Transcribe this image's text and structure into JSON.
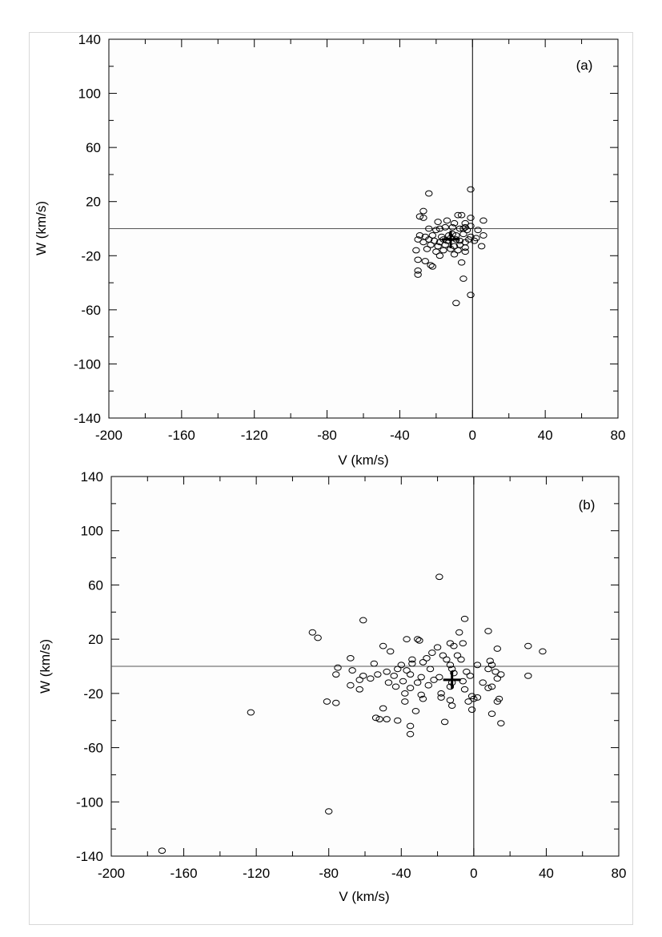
{
  "chart_data": [
    {
      "type": "scatter",
      "panel_label": "(a)",
      "xlabel": "V (km/s)",
      "ylabel": "W (km/s)",
      "xlim": [
        -200,
        80
      ],
      "ylim": [
        -140,
        140
      ],
      "xticks": [
        -200,
        -160,
        -120,
        -80,
        -40,
        0,
        40,
        80
      ],
      "yticks": [
        140,
        100,
        60,
        20,
        -20,
        -60,
        -100,
        -140
      ],
      "xtick_labels": [
        "-200",
        "-160",
        "-120",
        "-80",
        "-40",
        "0",
        "40",
        "80"
      ],
      "ytick_labels": [
        "140",
        "100",
        "60",
        "20",
        "-20",
        "-60",
        "-100",
        "-140"
      ],
      "grid": false,
      "reference_lines": {
        "x": 0,
        "y": 0
      },
      "mean_marker": {
        "x": -12,
        "y": -8
      },
      "points": [
        [
          -24,
          26
        ],
        [
          -1,
          29
        ],
        [
          -27,
          13
        ],
        [
          -29,
          9
        ],
        [
          -27,
          8
        ],
        [
          -8,
          10
        ],
        [
          -6,
          10
        ],
        [
          -1,
          8
        ],
        [
          6,
          6
        ],
        [
          -19,
          5
        ],
        [
          -14,
          6
        ],
        [
          -10,
          4
        ],
        [
          -4,
          4
        ],
        [
          -4,
          1
        ],
        [
          -1,
          2
        ],
        [
          -24,
          0
        ],
        [
          -20,
          -1
        ],
        [
          -18,
          0
        ],
        [
          -15,
          1
        ],
        [
          -11,
          1
        ],
        [
          -7,
          0
        ],
        [
          -3,
          -1
        ],
        [
          3,
          -1
        ],
        [
          -5,
          0
        ],
        [
          -29,
          -5
        ],
        [
          -26,
          -6
        ],
        [
          -22,
          -5
        ],
        [
          -17,
          -6
        ],
        [
          -13,
          -5
        ],
        [
          -11,
          -4
        ],
        [
          -9,
          -5
        ],
        [
          -5,
          -4
        ],
        [
          -1,
          -6
        ],
        [
          2,
          -7
        ],
        [
          6,
          -5
        ],
        [
          -30,
          -8
        ],
        [
          -27,
          -10
        ],
        [
          -24,
          -8
        ],
        [
          -21,
          -9
        ],
        [
          -18,
          -10
        ],
        [
          -16,
          -8
        ],
        [
          -14,
          -9
        ],
        [
          -12,
          -7
        ],
        [
          -9,
          -8
        ],
        [
          -7,
          -9
        ],
        [
          -4,
          -10
        ],
        [
          -2,
          -8
        ],
        [
          1,
          -9
        ],
        [
          -23,
          -12
        ],
        [
          -19,
          -13
        ],
        [
          -15,
          -12
        ],
        [
          -10,
          -13
        ],
        [
          -7,
          -12
        ],
        [
          -4,
          -14
        ],
        [
          5,
          -13
        ],
        [
          -31,
          -16
        ],
        [
          -25,
          -15
        ],
        [
          -20,
          -17
        ],
        [
          -16,
          -16
        ],
        [
          -12,
          -15
        ],
        [
          -8,
          -16
        ],
        [
          -4,
          -17
        ],
        [
          -18,
          -20
        ],
        [
          -10,
          -19
        ],
        [
          -30,
          -23
        ],
        [
          -26,
          -24
        ],
        [
          -22,
          -28
        ],
        [
          -23,
          -27
        ],
        [
          -6,
          -25
        ],
        [
          -30,
          -31
        ],
        [
          -30,
          -34
        ],
        [
          -5,
          -37
        ],
        [
          -1,
          -49
        ],
        [
          -9,
          -55
        ]
      ]
    },
    {
      "type": "scatter",
      "panel_label": "(b)",
      "xlabel": "V (km/s)",
      "ylabel": "W (km/s)",
      "xlim": [
        -200,
        80
      ],
      "ylim": [
        -140,
        140
      ],
      "xticks": [
        -200,
        -160,
        -120,
        -80,
        -40,
        0,
        40,
        80
      ],
      "yticks": [
        140,
        100,
        60,
        20,
        -20,
        -60,
        -100,
        -140
      ],
      "xtick_labels": [
        "-200",
        "-160",
        "-120",
        "-80",
        "-40",
        "0",
        "40",
        "80"
      ],
      "ytick_labels": [
        "140",
        "100",
        "60",
        "20",
        "-20",
        "-60",
        "-100",
        "-140"
      ],
      "grid": false,
      "reference_lines": {
        "x": 0,
        "y": 0
      },
      "mean_marker": {
        "x": -12,
        "y": -10
      },
      "points": [
        [
          -19,
          66
        ],
        [
          -61,
          34
        ],
        [
          -5,
          35
        ],
        [
          -89,
          25
        ],
        [
          -86,
          21
        ],
        [
          -8,
          25
        ],
        [
          8,
          26
        ],
        [
          -37,
          20
        ],
        [
          -31,
          20
        ],
        [
          -30,
          19
        ],
        [
          -13,
          17
        ],
        [
          -6,
          17
        ],
        [
          -50,
          15
        ],
        [
          -20,
          14
        ],
        [
          -11,
          15
        ],
        [
          30,
          15
        ],
        [
          13,
          13
        ],
        [
          38,
          11
        ],
        [
          -46,
          11
        ],
        [
          -23,
          10
        ],
        [
          -17,
          8
        ],
        [
          -9,
          8
        ],
        [
          -68,
          6
        ],
        [
          -34,
          5
        ],
        [
          -26,
          6
        ],
        [
          -15,
          5
        ],
        [
          -7,
          5
        ],
        [
          9,
          4
        ],
        [
          -55,
          2
        ],
        [
          -40,
          1
        ],
        [
          -34,
          2
        ],
        [
          -28,
          3
        ],
        [
          -13,
          1
        ],
        [
          2,
          1
        ],
        [
          10,
          1
        ],
        [
          -75,
          -1
        ],
        [
          -67,
          -3
        ],
        [
          -48,
          -4
        ],
        [
          -42,
          -2
        ],
        [
          -37,
          -3
        ],
        [
          -24,
          -2
        ],
        [
          -12,
          -2
        ],
        [
          -4,
          -4
        ],
        [
          8,
          -2
        ],
        [
          12,
          -4
        ],
        [
          -76,
          -6
        ],
        [
          -61,
          -7
        ],
        [
          -53,
          -6
        ],
        [
          -44,
          -7
        ],
        [
          -35,
          -6
        ],
        [
          -29,
          -8
        ],
        [
          -19,
          -8
        ],
        [
          -11,
          -5
        ],
        [
          -2,
          -7
        ],
        [
          15,
          -6
        ],
        [
          -63,
          -10
        ],
        [
          -57,
          -9
        ],
        [
          -47,
          -12
        ],
        [
          -39,
          -11
        ],
        [
          -31,
          -12
        ],
        [
          -22,
          -10
        ],
        [
          -12,
          -12
        ],
        [
          -6,
          -11
        ],
        [
          5,
          -12
        ],
        [
          13,
          -9
        ],
        [
          30,
          -7
        ],
        [
          -68,
          -14
        ],
        [
          -63,
          -17
        ],
        [
          -43,
          -15
        ],
        [
          -35,
          -16
        ],
        [
          -25,
          -14
        ],
        [
          -13,
          -15
        ],
        [
          -5,
          -17
        ],
        [
          8,
          -16
        ],
        [
          10,
          -15
        ],
        [
          -38,
          -20
        ],
        [
          -29,
          -21
        ],
        [
          -18,
          -20
        ],
        [
          -1,
          -22
        ],
        [
          0,
          -24
        ],
        [
          14,
          -24
        ],
        [
          -81,
          -26
        ],
        [
          -76,
          -27
        ],
        [
          -38,
          -26
        ],
        [
          -28,
          -24
        ],
        [
          -18,
          -23
        ],
        [
          -13,
          -25
        ],
        [
          -3,
          -26
        ],
        [
          2,
          -23
        ],
        [
          13,
          -26
        ],
        [
          -50,
          -31
        ],
        [
          -32,
          -33
        ],
        [
          -12,
          -29
        ],
        [
          -1,
          -32
        ],
        [
          10,
          -35
        ],
        [
          -54,
          -38
        ],
        [
          -52,
          -39
        ],
        [
          -48,
          -39
        ],
        [
          -42,
          -40
        ],
        [
          -35,
          -44
        ],
        [
          -16,
          -41
        ],
        [
          15,
          -42
        ],
        [
          -35,
          -50
        ],
        [
          -123,
          -34
        ],
        [
          -80,
          -107
        ],
        [
          -172,
          -136
        ]
      ]
    }
  ]
}
